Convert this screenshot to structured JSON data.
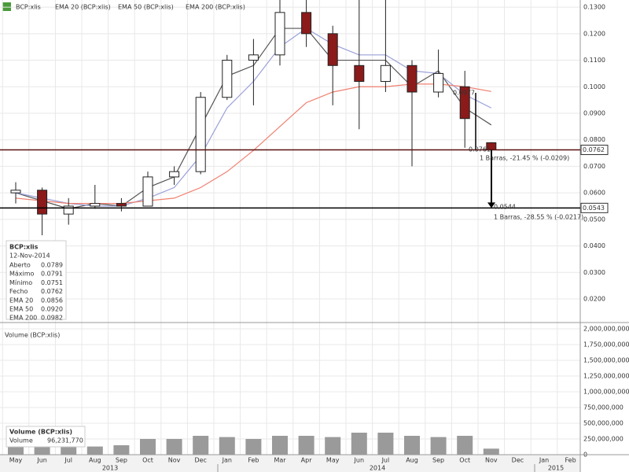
{
  "chart_data": [
    {
      "type": "candlestick",
      "legend": [
        "BCP:xlis",
        "EMA 20 (BCP:xlis)",
        "EMA 50 (BCP:xlis)",
        "EMA 200 (BCP:xlis)"
      ],
      "open": [
        0.06,
        0.061,
        0.052,
        0.055,
        0.056,
        0.055,
        0.066,
        0.068,
        0.096,
        0.11,
        0.112,
        0.128,
        0.12,
        0.108,
        0.102,
        0.108,
        0.098,
        0.1,
        0.0789,
        null,
        null,
        null
      ],
      "high": [
        0.064,
        0.062,
        0.058,
        0.063,
        0.058,
        0.068,
        0.07,
        0.098,
        0.112,
        0.118,
        0.135,
        0.135,
        0.123,
        0.133,
        0.135,
        0.11,
        0.114,
        0.106,
        0.0791,
        null,
        null,
        null
      ],
      "low": [
        0.056,
        0.044,
        0.048,
        0.054,
        0.053,
        0.055,
        0.063,
        0.067,
        0.095,
        0.093,
        0.108,
        0.115,
        0.093,
        0.084,
        0.098,
        0.07,
        0.096,
        0.077,
        0.0751,
        null,
        null,
        null
      ],
      "close": [
        0.061,
        0.052,
        0.055,
        0.056,
        0.055,
        0.066,
        0.068,
        0.096,
        0.11,
        0.112,
        0.128,
        0.12,
        0.108,
        0.102,
        0.108,
        0.098,
        0.105,
        0.088,
        0.0762,
        null,
        null,
        null
      ],
      "colors": {
        "up": "#ffffff",
        "down": "#8b1a1a",
        "wick": "#222222"
      },
      "series": [
        {
          "name": "EMA 20",
          "color": "#555555",
          "values": [
            0.06,
            0.057,
            0.054,
            0.056,
            0.055,
            0.062,
            0.066,
            0.085,
            0.104,
            0.108,
            0.122,
            0.122,
            0.11,
            0.11,
            0.11,
            0.1,
            0.106,
            0.092,
            0.0856,
            null,
            null,
            null
          ]
        },
        {
          "name": "EMA 50",
          "color": "#9aa0d8",
          "values": [
            0.06,
            0.058,
            0.056,
            0.055,
            0.055,
            0.058,
            0.062,
            0.074,
            0.092,
            0.102,
            0.115,
            0.122,
            0.116,
            0.112,
            0.112,
            0.106,
            0.105,
            0.097,
            0.092,
            null,
            null,
            null
          ]
        },
        {
          "name": "EMA 200",
          "color": "#f08070",
          "values": [
            0.058,
            0.057,
            0.056,
            0.056,
            0.056,
            0.057,
            0.058,
            0.062,
            0.068,
            0.076,
            0.085,
            0.094,
            0.098,
            0.1,
            0.1,
            0.101,
            0.101,
            0.1,
            0.0982,
            null,
            null,
            null
          ]
        }
      ],
      "ylim": [
        0.0117,
        0.1327
      ],
      "yticks": [
        {
          "value": 0.02,
          "label": "0.0200"
        },
        {
          "value": 0.03,
          "label": "0.0300"
        },
        {
          "value": 0.04,
          "label": "0.0400"
        },
        {
          "value": 0.05,
          "label": "0.0500"
        },
        {
          "value": 0.06,
          "label": "0.0600"
        },
        {
          "value": 0.07,
          "label": "0.0700"
        },
        {
          "value": 0.08,
          "label": "0.0800"
        },
        {
          "value": 0.09,
          "label": "0.0900"
        },
        {
          "value": 0.1,
          "label": "0.1000"
        },
        {
          "value": 0.11,
          "label": "0.1100"
        },
        {
          "value": 0.12,
          "label": "0.1200"
        },
        {
          "value": 0.13,
          "label": "0.1300"
        }
      ],
      "levels": [
        {
          "value": 0.0762,
          "label": "0.0762"
        },
        {
          "value": 0.0543,
          "label": "0.0543"
        }
      ],
      "annotations": [
        "0.0977",
        "0.0761",
        "1 Barras, -21.45 % (-0.0209)",
        "0.0544",
        "1 Barras, -28.55 % (-0.0217)"
      ],
      "grid": true
    },
    {
      "type": "bar",
      "legend": "Volume (BCP:xlis)",
      "categories": [
        "May",
        "Jun",
        "Jul",
        "Aug",
        "Sep",
        "Oct",
        "Nov",
        "Dec",
        "Jan",
        "Feb",
        "Mar",
        "Apr",
        "May",
        "Jun",
        "Jul",
        "Aug",
        "Sep",
        "Oct",
        "Nov",
        "Dec",
        "Jan",
        "Feb"
      ],
      "years": [
        "2013",
        "2014",
        "2015"
      ],
      "values": [
        150000000,
        200000000,
        150000000,
        130000000,
        150000000,
        250000000,
        250000000,
        300000000,
        280000000,
        250000000,
        300000000,
        300000000,
        280000000,
        350000000,
        350000000,
        300000000,
        280000000,
        300000000,
        96231770,
        null,
        null,
        null
      ],
      "color": "#9a9a9a",
      "ylim": [
        0,
        2075000000
      ],
      "yticks": [
        0,
        {
          "value": 250000000,
          "label": "250,000,000"
        },
        {
          "value": 500000000,
          "label": "500,000,000"
        },
        {
          "value": 750000000,
          "label": "750,000,000"
        },
        {
          "value": 1000000000,
          "label": "1,000,000,000"
        },
        {
          "value": 1250000000,
          "label": "1,250,000,000"
        },
        {
          "value": 1500000000,
          "label": "1,500,000,000"
        },
        {
          "value": 1750000000,
          "label": "1,750,000,000"
        },
        {
          "value": 2000000000,
          "label": "2,000,000,000"
        }
      ],
      "grid": true
    }
  ],
  "info_box": {
    "title": "BCP:xlis",
    "date": "12-Nov-2014",
    "rows": [
      [
        "Aberto",
        "0.0789"
      ],
      [
        "Máximo",
        "0.0791"
      ],
      [
        "Mínimo",
        "0.0751"
      ],
      [
        "Fecho",
        "0.0762"
      ],
      [
        "EMA 20",
        "0.0856"
      ],
      [
        "EMA 50",
        "0.0920"
      ],
      [
        "EMA 200",
        "0.0982"
      ]
    ]
  },
  "volume_box": {
    "title": "Volume (BCP:xlis)",
    "label": "Volume",
    "value": "96,231,770"
  }
}
